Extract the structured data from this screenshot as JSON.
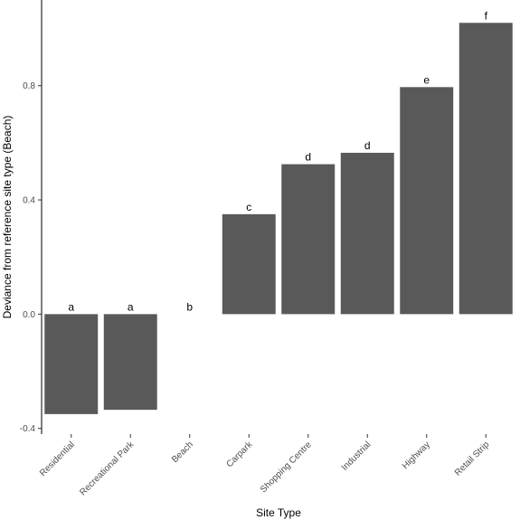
{
  "chart_data": {
    "type": "bar",
    "title": "",
    "xlabel": "Site Type",
    "ylabel": "Deviance from reference site type (Beach)",
    "categories": [
      "Residential",
      "Recreational Park",
      "Beach",
      "Carpark",
      "Shopping Centre",
      "Industrial",
      "Highway",
      "Retail Strip"
    ],
    "values": [
      -0.35,
      -0.335,
      0.0,
      0.35,
      0.525,
      0.565,
      0.795,
      1.02
    ],
    "labels": [
      "a",
      "a",
      "b",
      "c",
      "d",
      "d",
      "e",
      "f"
    ],
    "ylim": [
      -0.42,
      1.1
    ],
    "yticks": [
      -0.4,
      0.0,
      0.4,
      0.8
    ],
    "ytick_labels": [
      "-0.4",
      "0.0",
      "0.4",
      "0.8"
    ],
    "grid": false,
    "bar_color": "#595959"
  }
}
